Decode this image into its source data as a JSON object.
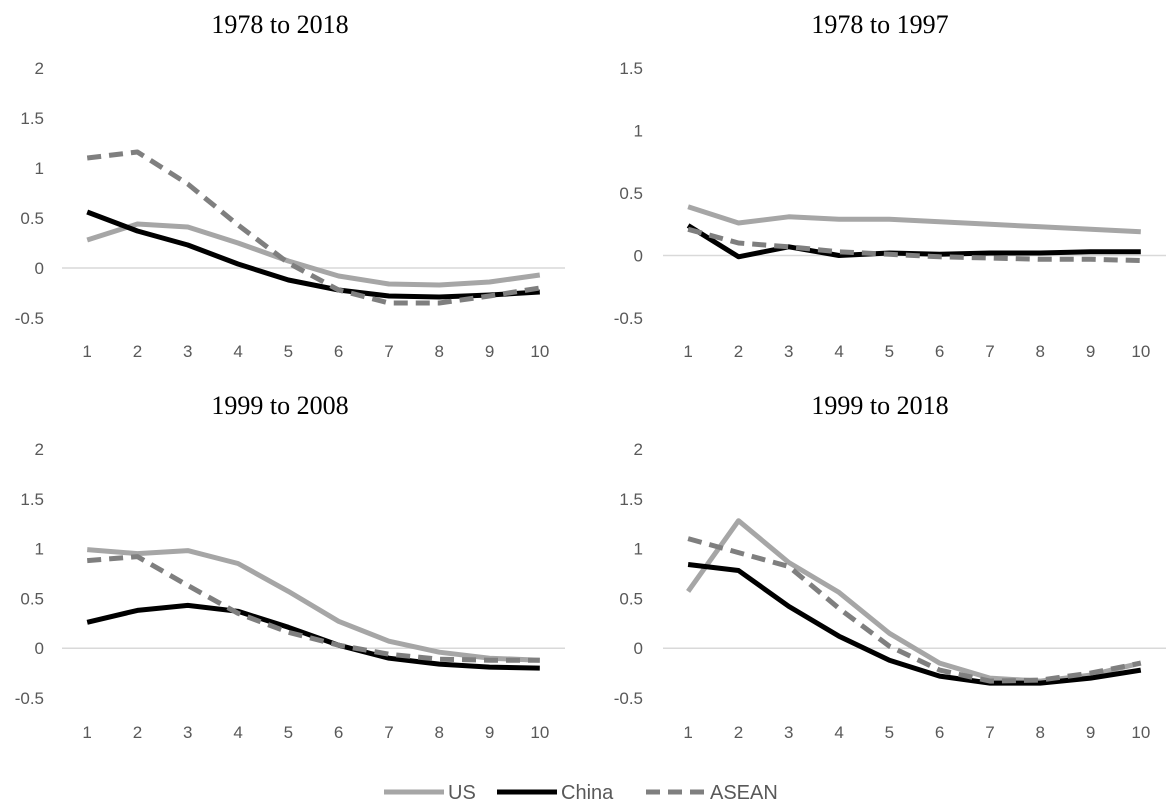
{
  "legend": [
    {
      "name": "US",
      "color": "#a6a6a6",
      "dash": "solid"
    },
    {
      "name": "China",
      "color": "#000000",
      "dash": "solid"
    },
    {
      "name": "ASEAN",
      "color": "#7f7f7f",
      "dash": "dashed"
    }
  ],
  "chart_data": [
    {
      "type": "line",
      "title": "1978 to 2018",
      "x": [
        1,
        2,
        3,
        4,
        5,
        6,
        7,
        8,
        9,
        10
      ],
      "ylim": [
        -0.5,
        2
      ],
      "yticks": [
        "2",
        "1.5",
        "1",
        "0.5",
        "0",
        "-0.5"
      ],
      "ytick_values": [
        2,
        1.5,
        1,
        0.5,
        0,
        -0.5
      ],
      "series": [
        {
          "name": "US",
          "values": [
            0.28,
            0.44,
            0.41,
            0.25,
            0.07,
            -0.08,
            -0.16,
            -0.17,
            -0.14,
            -0.07
          ]
        },
        {
          "name": "China",
          "values": [
            0.56,
            0.37,
            0.23,
            0.04,
            -0.12,
            -0.22,
            -0.28,
            -0.29,
            -0.27,
            -0.24
          ]
        },
        {
          "name": "ASEAN",
          "values": [
            1.1,
            1.16,
            0.84,
            0.43,
            0.05,
            -0.22,
            -0.35,
            -0.35,
            -0.28,
            -0.2
          ]
        }
      ]
    },
    {
      "type": "line",
      "title": "1978 to 1997",
      "x": [
        1,
        2,
        3,
        4,
        5,
        6,
        7,
        8,
        9,
        10
      ],
      "ylim": [
        -0.5,
        1.5
      ],
      "yticks": [
        "1.5",
        "1",
        "0.5",
        "0",
        "-0.5"
      ],
      "ytick_values": [
        1.5,
        1,
        0.5,
        0,
        -0.5
      ],
      "series": [
        {
          "name": "US",
          "values": [
            0.39,
            0.26,
            0.31,
            0.29,
            0.29,
            0.27,
            0.25,
            0.23,
            0.21,
            0.19
          ]
        },
        {
          "name": "China",
          "values": [
            0.24,
            -0.01,
            0.07,
            0.0,
            0.02,
            0.01,
            0.02,
            0.02,
            0.03,
            0.03
          ]
        },
        {
          "name": "ASEAN",
          "values": [
            0.21,
            0.1,
            0.07,
            0.03,
            0.01,
            -0.01,
            -0.02,
            -0.03,
            -0.03,
            -0.04
          ]
        }
      ]
    },
    {
      "type": "line",
      "title": "1999 to 2008",
      "x": [
        1,
        2,
        3,
        4,
        5,
        6,
        7,
        8,
        9,
        10
      ],
      "ylim": [
        -0.5,
        2
      ],
      "yticks": [
        "2",
        "1.5",
        "1",
        "0.5",
        "0",
        "-0.5"
      ],
      "ytick_values": [
        2,
        1.5,
        1,
        0.5,
        0,
        -0.5
      ],
      "series": [
        {
          "name": "US",
          "values": [
            0.99,
            0.95,
            0.98,
            0.85,
            0.57,
            0.27,
            0.07,
            -0.04,
            -0.1,
            -0.12
          ]
        },
        {
          "name": "China",
          "values": [
            0.26,
            0.38,
            0.43,
            0.37,
            0.21,
            0.03,
            -0.1,
            -0.16,
            -0.19,
            -0.2
          ]
        },
        {
          "name": "ASEAN",
          "values": [
            0.88,
            0.92,
            0.63,
            0.35,
            0.16,
            0.03,
            -0.06,
            -0.11,
            -0.12,
            -0.12
          ]
        }
      ]
    },
    {
      "type": "line",
      "title": "1999 to 2018",
      "x": [
        1,
        2,
        3,
        4,
        5,
        6,
        7,
        8,
        9,
        10
      ],
      "ylim": [
        -0.5,
        2
      ],
      "yticks": [
        "2",
        "1.5",
        "1",
        "0.5",
        "0",
        "-0.5"
      ],
      "ytick_values": [
        2,
        1.5,
        1,
        0.5,
        0,
        -0.5
      ],
      "series": [
        {
          "name": "US",
          "values": [
            0.57,
            1.28,
            0.86,
            0.56,
            0.15,
            -0.15,
            -0.3,
            -0.33,
            -0.27,
            -0.15
          ]
        },
        {
          "name": "China",
          "values": [
            0.84,
            0.78,
            0.42,
            0.12,
            -0.12,
            -0.28,
            -0.35,
            -0.35,
            -0.3,
            -0.22
          ]
        },
        {
          "name": "ASEAN",
          "values": [
            1.1,
            0.96,
            0.82,
            0.4,
            0.02,
            -0.22,
            -0.33,
            -0.32,
            -0.25,
            -0.15
          ]
        }
      ]
    }
  ]
}
